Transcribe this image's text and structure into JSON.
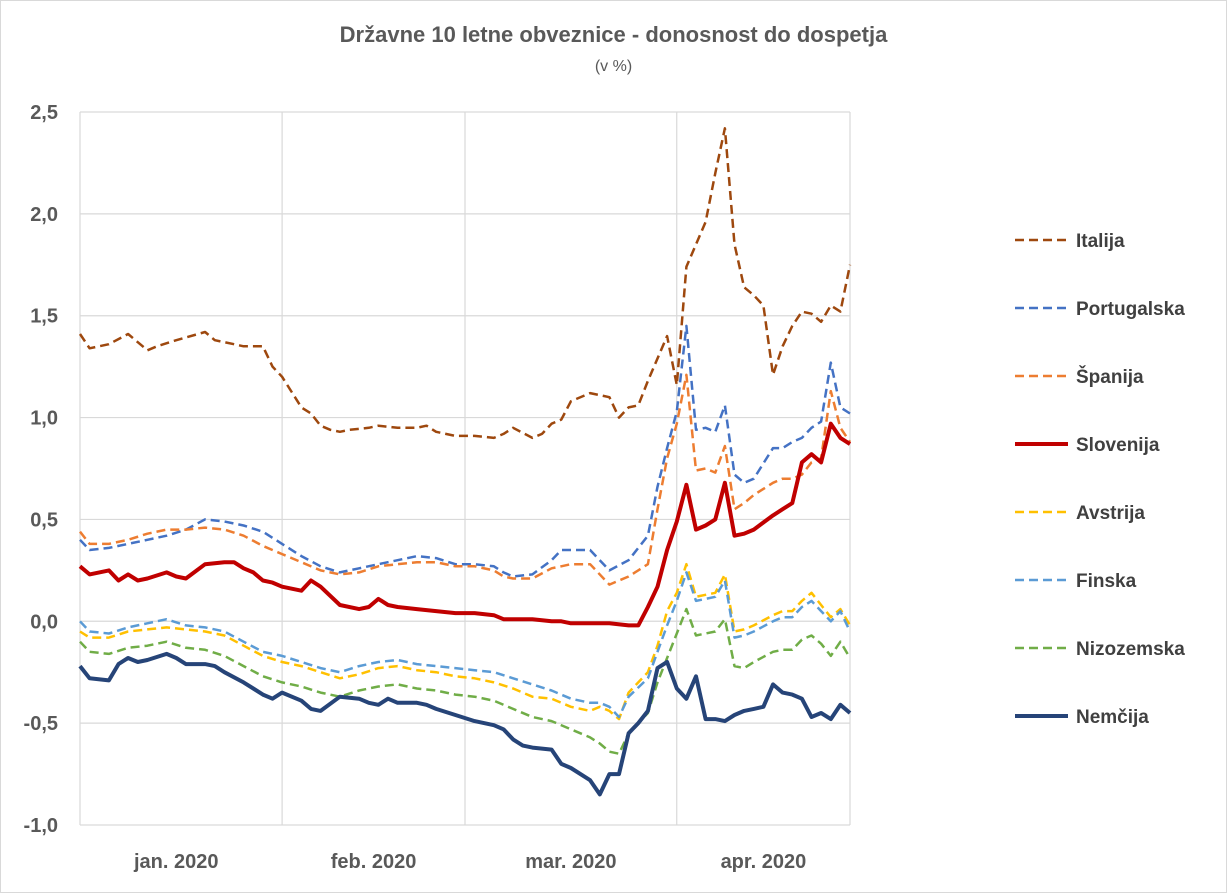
{
  "chart_data": {
    "type": "line",
    "title": "Državne 10 letne obveznice - donosnost do dospetja",
    "subtitle": "(v %)",
    "xlabel": "",
    "ylabel": "",
    "ylim": [
      -1.0,
      2.5
    ],
    "yticks": [
      "2,5",
      "2,0",
      "1,5",
      "1,0",
      "0,5",
      "0,0",
      "-0,5",
      "-1,0"
    ],
    "ytick_values": [
      2.5,
      2.0,
      1.5,
      1.0,
      0.5,
      0.0,
      -0.5,
      -1.0
    ],
    "xticks": [
      "jan. 2020",
      "feb. 2020",
      "mar. 2020",
      "apr. 2020"
    ],
    "grid": true,
    "legend_position": "right",
    "x_unit": "trading days from start of January 2020 (0-80)",
    "series": [
      {
        "name": "Italija",
        "color": "#9E480E",
        "dash": "dashed",
        "width": 2.5,
        "x": [
          0,
          1,
          3,
          5,
          6,
          7,
          8,
          10,
          13,
          14,
          16,
          17,
          19,
          20,
          21,
          23,
          24,
          25,
          26,
          27,
          28,
          30,
          31,
          33,
          34,
          35,
          36,
          37,
          39,
          41,
          43,
          44,
          45,
          47,
          48,
          49,
          50,
          51,
          53,
          55,
          56,
          57,
          58,
          59,
          60,
          61,
          62,
          63,
          65,
          66,
          67,
          68,
          69,
          70,
          71,
          72,
          73,
          74,
          75,
          76,
          77,
          78,
          79,
          80
        ],
        "y": [
          1.41,
          1.34,
          1.36,
          1.41,
          1.37,
          1.33,
          1.35,
          1.38,
          1.42,
          1.38,
          1.36,
          1.35,
          1.35,
          1.25,
          1.2,
          1.05,
          1.02,
          0.96,
          0.94,
          0.93,
          0.94,
          0.95,
          0.96,
          0.95,
          0.95,
          0.95,
          0.96,
          0.93,
          0.91,
          0.91,
          0.9,
          0.92,
          0.95,
          0.9,
          0.92,
          0.97,
          0.99,
          1.08,
          1.12,
          1.1,
          1.0,
          1.05,
          1.06,
          1.18,
          1.29,
          1.4,
          1.16,
          1.74,
          1.96,
          2.2,
          2.42,
          1.85,
          1.64,
          1.6,
          1.55,
          1.21,
          1.35,
          1.45,
          1.52,
          1.51,
          1.47,
          1.55,
          1.52,
          1.75
        ]
      },
      {
        "name": "Portugalska",
        "color": "#4472C4",
        "dash": "dashed",
        "width": 2.5,
        "x": [
          0,
          1,
          3,
          5,
          7,
          9,
          11,
          13,
          15,
          17,
          19,
          21,
          23,
          25,
          27,
          29,
          31,
          33,
          35,
          37,
          39,
          41,
          43,
          44,
          45,
          47,
          49,
          50,
          51,
          53,
          55,
          57,
          59,
          60,
          61,
          62,
          63,
          64,
          65,
          66,
          67,
          68,
          69,
          70,
          72,
          73,
          74,
          75,
          76,
          77,
          78,
          79,
          80
        ],
        "y": [
          0.4,
          0.35,
          0.36,
          0.38,
          0.4,
          0.42,
          0.45,
          0.5,
          0.49,
          0.47,
          0.44,
          0.38,
          0.32,
          0.27,
          0.24,
          0.26,
          0.28,
          0.3,
          0.32,
          0.31,
          0.28,
          0.28,
          0.27,
          0.24,
          0.22,
          0.23,
          0.3,
          0.35,
          0.35,
          0.35,
          0.25,
          0.3,
          0.42,
          0.66,
          0.85,
          1.03,
          1.45,
          0.94,
          0.95,
          0.93,
          1.06,
          0.72,
          0.68,
          0.7,
          0.85,
          0.85,
          0.88,
          0.9,
          0.95,
          0.98,
          1.27,
          1.05,
          1.02
        ]
      },
      {
        "name": "Španija",
        "color": "#ED7D31",
        "dash": "dashed",
        "width": 2.5,
        "x": [
          0,
          1,
          3,
          5,
          7,
          9,
          11,
          13,
          15,
          17,
          19,
          21,
          23,
          25,
          27,
          29,
          31,
          33,
          35,
          37,
          39,
          41,
          43,
          44,
          45,
          47,
          49,
          50,
          51,
          53,
          55,
          57,
          59,
          60,
          61,
          62,
          63,
          64,
          65,
          66,
          67,
          68,
          69,
          70,
          72,
          73,
          74,
          75,
          76,
          77,
          78,
          79,
          80
        ],
        "y": [
          0.44,
          0.38,
          0.38,
          0.4,
          0.43,
          0.45,
          0.45,
          0.46,
          0.45,
          0.42,
          0.37,
          0.33,
          0.29,
          0.25,
          0.23,
          0.24,
          0.27,
          0.28,
          0.29,
          0.29,
          0.27,
          0.27,
          0.25,
          0.22,
          0.21,
          0.21,
          0.26,
          0.27,
          0.28,
          0.28,
          0.18,
          0.22,
          0.28,
          0.55,
          0.8,
          0.97,
          1.21,
          0.74,
          0.75,
          0.73,
          0.86,
          0.55,
          0.58,
          0.62,
          0.68,
          0.7,
          0.7,
          0.72,
          0.78,
          0.8,
          1.13,
          0.95,
          0.88
        ]
      },
      {
        "name": "Slovenija",
        "color": "#C00000",
        "dash": "solid",
        "width": 4,
        "x": [
          0,
          1,
          3,
          4,
          5,
          6,
          7,
          9,
          10,
          11,
          13,
          15,
          16,
          17,
          18,
          19,
          20,
          21,
          23,
          24,
          25,
          27,
          29,
          30,
          31,
          32,
          33,
          35,
          37,
          39,
          41,
          43,
          44,
          45,
          47,
          49,
          50,
          51,
          53,
          55,
          57,
          58,
          59,
          60,
          61,
          62,
          63,
          64,
          65,
          66,
          67,
          68,
          69,
          70,
          72,
          73,
          74,
          75,
          76,
          77,
          78,
          79,
          80
        ],
        "y": [
          0.27,
          0.23,
          0.25,
          0.2,
          0.23,
          0.2,
          0.21,
          0.24,
          0.22,
          0.21,
          0.28,
          0.29,
          0.29,
          0.26,
          0.24,
          0.2,
          0.19,
          0.17,
          0.15,
          0.2,
          0.17,
          0.08,
          0.06,
          0.07,
          0.11,
          0.08,
          0.07,
          0.06,
          0.05,
          0.04,
          0.04,
          0.03,
          0.01,
          0.01,
          0.01,
          0.0,
          0.0,
          -0.01,
          -0.01,
          -0.01,
          -0.02,
          -0.02,
          0.07,
          0.17,
          0.35,
          0.49,
          0.67,
          0.45,
          0.47,
          0.5,
          0.68,
          0.42,
          0.43,
          0.45,
          0.52,
          0.55,
          0.58,
          0.78,
          0.82,
          0.78,
          0.97,
          0.9,
          0.87
        ]
      },
      {
        "name": "Avstrija",
        "color": "#FFC000",
        "dash": "dashed",
        "width": 2.5,
        "x": [
          0,
          1,
          3,
          5,
          7,
          9,
          11,
          13,
          15,
          17,
          19,
          21,
          23,
          25,
          27,
          29,
          31,
          33,
          35,
          37,
          39,
          41,
          43,
          45,
          47,
          49,
          51,
          53,
          54,
          55,
          56,
          57,
          59,
          60,
          61,
          62,
          63,
          64,
          65,
          66,
          67,
          68,
          69,
          70,
          72,
          73,
          74,
          75,
          76,
          77,
          78,
          79,
          80
        ],
        "y": [
          -0.05,
          -0.08,
          -0.08,
          -0.05,
          -0.04,
          -0.03,
          -0.04,
          -0.05,
          -0.07,
          -0.12,
          -0.17,
          -0.2,
          -0.22,
          -0.25,
          -0.28,
          -0.26,
          -0.23,
          -0.22,
          -0.24,
          -0.25,
          -0.27,
          -0.28,
          -0.3,
          -0.33,
          -0.37,
          -0.38,
          -0.42,
          -0.44,
          -0.42,
          -0.44,
          -0.48,
          -0.35,
          -0.25,
          -0.12,
          0.05,
          0.14,
          0.28,
          0.12,
          0.13,
          0.14,
          0.23,
          -0.05,
          -0.04,
          -0.02,
          0.03,
          0.05,
          0.05,
          0.1,
          0.14,
          0.08,
          0.02,
          0.06,
          -0.02
        ]
      },
      {
        "name": "Finska",
        "color": "#5B9BD5",
        "dash": "dashed",
        "width": 2.5,
        "x": [
          0,
          1,
          3,
          5,
          7,
          9,
          11,
          13,
          15,
          17,
          19,
          21,
          23,
          25,
          27,
          29,
          31,
          33,
          35,
          37,
          39,
          41,
          43,
          45,
          47,
          49,
          51,
          53,
          54,
          55,
          56,
          57,
          59,
          60,
          61,
          62,
          63,
          64,
          65,
          66,
          67,
          68,
          69,
          70,
          72,
          73,
          74,
          75,
          76,
          77,
          78,
          79,
          80
        ],
        "y": [
          0.0,
          -0.05,
          -0.06,
          -0.03,
          -0.01,
          0.01,
          -0.02,
          -0.03,
          -0.05,
          -0.1,
          -0.15,
          -0.17,
          -0.2,
          -0.23,
          -0.25,
          -0.22,
          -0.2,
          -0.19,
          -0.21,
          -0.22,
          -0.23,
          -0.24,
          -0.25,
          -0.28,
          -0.31,
          -0.34,
          -0.38,
          -0.4,
          -0.4,
          -0.42,
          -0.47,
          -0.37,
          -0.28,
          -0.15,
          -0.02,
          0.1,
          0.24,
          0.1,
          0.11,
          0.12,
          0.2,
          -0.08,
          -0.07,
          -0.05,
          0.0,
          0.02,
          0.02,
          0.07,
          0.1,
          0.05,
          0.0,
          0.05,
          -0.05
        ]
      },
      {
        "name": "Nizozemska",
        "color": "#70AD47",
        "dash": "dashed",
        "width": 2.5,
        "x": [
          0,
          1,
          3,
          5,
          7,
          9,
          11,
          13,
          15,
          17,
          19,
          21,
          23,
          25,
          27,
          29,
          31,
          33,
          35,
          37,
          39,
          41,
          43,
          45,
          47,
          49,
          51,
          53,
          54,
          55,
          56,
          57,
          59,
          60,
          61,
          62,
          63,
          64,
          65,
          66,
          67,
          68,
          69,
          70,
          72,
          73,
          74,
          75,
          76,
          77,
          78,
          79,
          80
        ],
        "y": [
          -0.1,
          -0.15,
          -0.16,
          -0.13,
          -0.12,
          -0.1,
          -0.13,
          -0.14,
          -0.17,
          -0.22,
          -0.27,
          -0.3,
          -0.32,
          -0.35,
          -0.37,
          -0.34,
          -0.32,
          -0.31,
          -0.33,
          -0.34,
          -0.36,
          -0.37,
          -0.39,
          -0.43,
          -0.47,
          -0.49,
          -0.53,
          -0.57,
          -0.6,
          -0.64,
          -0.65,
          -0.55,
          -0.45,
          -0.3,
          -0.18,
          -0.06,
          0.06,
          -0.07,
          -0.06,
          -0.05,
          0.01,
          -0.22,
          -0.23,
          -0.2,
          -0.15,
          -0.14,
          -0.14,
          -0.09,
          -0.07,
          -0.11,
          -0.17,
          -0.1,
          -0.18
        ]
      },
      {
        "name": "Nemčija",
        "color": "#264478",
        "dash": "solid",
        "width": 4,
        "x": [
          0,
          1,
          3,
          4,
          5,
          6,
          7,
          9,
          10,
          11,
          13,
          14,
          15,
          17,
          18,
          19,
          20,
          21,
          23,
          24,
          25,
          27,
          29,
          30,
          31,
          32,
          33,
          35,
          36,
          37,
          39,
          41,
          43,
          44,
          45,
          46,
          47,
          49,
          50,
          51,
          53,
          54,
          55,
          56,
          57,
          58,
          59,
          60,
          61,
          62,
          63,
          64,
          65,
          66,
          67,
          68,
          69,
          70,
          71,
          72,
          73,
          74,
          75,
          76,
          77,
          78,
          79,
          80
        ],
        "y": [
          -0.22,
          -0.28,
          -0.29,
          -0.21,
          -0.18,
          -0.2,
          -0.19,
          -0.16,
          -0.18,
          -0.21,
          -0.21,
          -0.22,
          -0.25,
          -0.3,
          -0.33,
          -0.36,
          -0.38,
          -0.35,
          -0.39,
          -0.43,
          -0.44,
          -0.37,
          -0.38,
          -0.4,
          -0.41,
          -0.38,
          -0.4,
          -0.4,
          -0.41,
          -0.43,
          -0.46,
          -0.49,
          -0.51,
          -0.53,
          -0.58,
          -0.61,
          -0.62,
          -0.63,
          -0.7,
          -0.72,
          -0.78,
          -0.85,
          -0.75,
          -0.75,
          -0.55,
          -0.5,
          -0.44,
          -0.23,
          -0.2,
          -0.33,
          -0.38,
          -0.27,
          -0.48,
          -0.48,
          -0.49,
          -0.46,
          -0.44,
          -0.43,
          -0.42,
          -0.31,
          -0.35,
          -0.36,
          -0.38,
          -0.47,
          -0.45,
          -0.48,
          -0.41,
          -0.45
        ]
      }
    ]
  }
}
